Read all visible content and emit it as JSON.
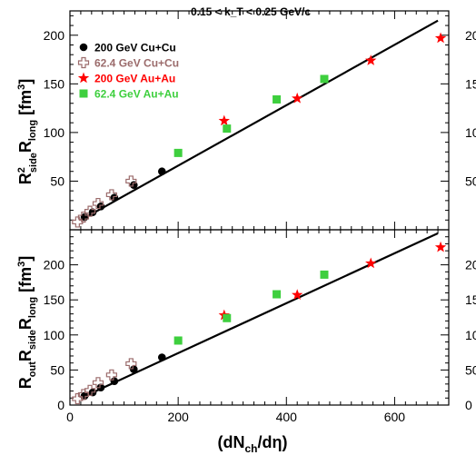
{
  "figure_title": "0.15 < k_T < 0.25 GeV/c",
  "x_axis_label": "(dN_ch/dη)",
  "colors": {
    "cucu200": "#000000",
    "cucu62": "#9b6b6b",
    "auau200": "#ff0000",
    "auau62": "#3ecf3e",
    "fit": "#000000"
  },
  "chart_data": [
    {
      "type": "scatter",
      "title": "",
      "ylabel": "R²_side R_long [fm³]",
      "xlabel": "",
      "xlim": [
        0,
        700
      ],
      "ylim": [
        0,
        225
      ],
      "yticks": [
        50,
        100,
        150,
        200
      ],
      "legend_position": "top-left",
      "grid": false,
      "series": [
        {
          "name": "200 GeV Cu+Cu",
          "marker": "circle",
          "color": "#000000",
          "points": [
            [
              27,
              13
            ],
            [
              42,
              18
            ],
            [
              57,
              24
            ],
            [
              82,
              33
            ],
            [
              118,
              46
            ],
            [
              170,
              60
            ]
          ]
        },
        {
          "name": "62.4 GeV Cu+Cu",
          "marker": "open-cross",
          "color": "#9b6b6b",
          "points": [
            [
              14,
              8
            ],
            [
              25,
              13
            ],
            [
              37,
              19
            ],
            [
              52,
              27
            ],
            [
              77,
              36
            ],
            [
              113,
              50
            ]
          ]
        },
        {
          "name": "200 GeV Au+Au",
          "marker": "star",
          "color": "#ff0000",
          "points": [
            [
              285,
              112
            ],
            [
              420,
              135
            ],
            [
              556,
              174
            ],
            [
              685,
              197
            ]
          ]
        },
        {
          "name": "62.4 GeV Au+Au",
          "marker": "square",
          "color": "#3ecf3e",
          "points": [
            [
              200,
              79
            ],
            [
              290,
              104
            ],
            [
              382,
              134
            ],
            [
              470,
              155
            ]
          ]
        }
      ],
      "fit_line": {
        "x": [
          20,
          680
        ],
        "y": [
          10,
          215
        ]
      }
    },
    {
      "type": "scatter",
      "title": "",
      "ylabel": "R_out R_side R_long [fm³]",
      "xlabel": "(dN_ch/dη)",
      "xlim": [
        0,
        700
      ],
      "ylim": [
        0,
        250
      ],
      "yticks": [
        0,
        50,
        100,
        150,
        200
      ],
      "xticks": [
        0,
        200,
        400,
        600
      ],
      "grid": false,
      "series": [
        {
          "name": "200 GeV Cu+Cu",
          "marker": "circle",
          "color": "#000000",
          "points": [
            [
              27,
              13
            ],
            [
              42,
              18
            ],
            [
              57,
              25
            ],
            [
              82,
              34
            ],
            [
              118,
              51
            ],
            [
              170,
              68
            ]
          ]
        },
        {
          "name": "62.4 GeV Cu+Cu",
          "marker": "open-cross",
          "color": "#9b6b6b",
          "points": [
            [
              14,
              9
            ],
            [
              25,
              15
            ],
            [
              37,
              21
            ],
            [
              52,
              32
            ],
            [
              77,
              43
            ],
            [
              113,
              59
            ]
          ]
        },
        {
          "name": "200 GeV Au+Au",
          "marker": "star",
          "color": "#ff0000",
          "points": [
            [
              285,
              128
            ],
            [
              420,
              157
            ],
            [
              556,
              202
            ],
            [
              685,
              225
            ]
          ]
        },
        {
          "name": "62.4 GeV Au+Au",
          "marker": "square",
          "color": "#3ecf3e",
          "points": [
            [
              200,
              92
            ],
            [
              290,
              124
            ],
            [
              382,
              158
            ],
            [
              470,
              186
            ]
          ]
        }
      ],
      "fit_line": {
        "x": [
          20,
          680
        ],
        "y": [
          10,
          245
        ]
      }
    }
  ]
}
